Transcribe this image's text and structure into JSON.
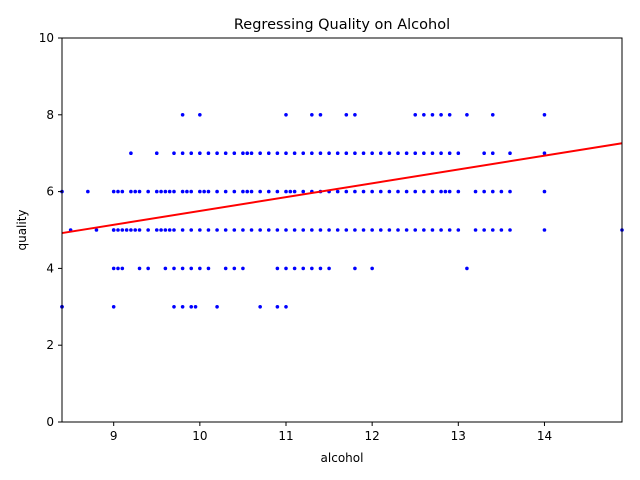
{
  "chart_data": {
    "type": "scatter",
    "title": "Regressing Quality on Alcohol",
    "xlabel": "alcohol",
    "ylabel": "quality",
    "xlim": [
      8.4,
      14.9
    ],
    "ylim": [
      0,
      10
    ],
    "xticks": [
      9,
      10,
      11,
      12,
      13,
      14
    ],
    "yticks": [
      0,
      2,
      4,
      6,
      8,
      10
    ],
    "grid": false,
    "point_color": "#0000ff",
    "line_color": "#ff0000",
    "points": {
      "x": [
        8.4,
        8.4,
        8.5,
        8.7,
        8.8,
        9.0,
        9.0,
        9.05,
        9.1,
        9.15,
        9.2,
        9.25,
        9.3,
        9.4,
        9.5,
        9.55,
        9.6,
        9.65,
        9.7,
        9.8,
        9.9,
        10.0,
        10.1,
        10.2,
        10.3,
        10.4,
        10.5,
        10.6,
        10.7,
        10.8,
        10.9,
        11.0,
        11.1,
        11.2,
        11.3,
        11.4,
        11.5,
        11.6,
        11.7,
        11.8,
        11.9,
        12.0,
        12.1,
        12.2,
        12.3,
        12.4,
        12.5,
        12.6,
        12.7,
        12.8,
        12.9,
        13.0,
        13.2,
        13.3,
        13.4,
        13.5,
        13.6,
        14.0,
        9.0,
        9.05,
        9.1,
        9.2,
        9.25,
        9.3,
        9.4,
        9.5,
        9.55,
        9.6,
        9.65,
        9.7,
        9.8,
        9.85,
        9.9,
        10.0,
        10.05,
        10.1,
        10.2,
        10.3,
        10.4,
        10.5,
        10.55,
        10.6,
        10.7,
        10.8,
        10.9,
        11.0,
        11.05,
        11.1,
        11.2,
        11.3,
        11.4,
        11.5,
        11.6,
        11.7,
        11.8,
        11.9,
        12.0,
        12.1,
        12.2,
        12.3,
        12.4,
        12.5,
        12.6,
        12.7,
        12.8,
        12.85,
        12.9,
        13.0,
        13.2,
        13.3,
        13.4,
        13.5,
        13.6,
        14.0,
        9.2,
        9.5,
        9.7,
        9.8,
        9.9,
        10.0,
        10.1,
        10.2,
        10.3,
        10.4,
        10.5,
        10.55,
        10.6,
        10.7,
        10.8,
        10.9,
        11.0,
        11.1,
        11.2,
        11.3,
        11.4,
        11.5,
        11.6,
        11.7,
        11.8,
        11.9,
        12.0,
        12.1,
        12.2,
        12.3,
        12.4,
        12.5,
        12.6,
        12.7,
        12.8,
        12.9,
        13.0,
        13.3,
        13.4,
        13.6,
        14.0,
        9.8,
        10.0,
        11.0,
        11.3,
        11.4,
        11.7,
        11.8,
        12.5,
        12.6,
        12.7,
        12.8,
        12.9,
        13.1,
        13.4,
        14.0,
        9.0,
        9.05,
        9.1,
        9.3,
        9.4,
        9.6,
        9.7,
        9.8,
        9.9,
        10.0,
        10.1,
        10.3,
        10.4,
        10.5,
        10.9,
        11.0,
        11.1,
        11.2,
        11.3,
        11.4,
        11.5,
        11.8,
        12.0,
        13.1,
        8.4,
        9.0,
        9.7,
        9.8,
        9.9,
        9.95,
        10.2,
        10.7,
        10.9,
        11.0,
        14.9
      ],
      "y": [
        3,
        6,
        5,
        6,
        5,
        5,
        5,
        5,
        5,
        5,
        5,
        5,
        5,
        5,
        5,
        5,
        5,
        5,
        5,
        5,
        5,
        5,
        5,
        5,
        5,
        5,
        5,
        5,
        5,
        5,
        5,
        5,
        5,
        5,
        5,
        5,
        5,
        5,
        5,
        5,
        5,
        5,
        5,
        5,
        5,
        5,
        5,
        5,
        5,
        5,
        5,
        5,
        5,
        5,
        5,
        5,
        5,
        5,
        6,
        6,
        6,
        6,
        6,
        6,
        6,
        6,
        6,
        6,
        6,
        6,
        6,
        6,
        6,
        6,
        6,
        6,
        6,
        6,
        6,
        6,
        6,
        6,
        6,
        6,
        6,
        6,
        6,
        6,
        6,
        6,
        6,
        6,
        6,
        6,
        6,
        6,
        6,
        6,
        6,
        6,
        6,
        6,
        6,
        6,
        6,
        6,
        6,
        6,
        6,
        6,
        6,
        6,
        6,
        6,
        7,
        7,
        7,
        7,
        7,
        7,
        7,
        7,
        7,
        7,
        7,
        7,
        7,
        7,
        7,
        7,
        7,
        7,
        7,
        7,
        7,
        7,
        7,
        7,
        7,
        7,
        7,
        7,
        7,
        7,
        7,
        7,
        7,
        7,
        7,
        7,
        7,
        7,
        7,
        7,
        7,
        8,
        8,
        8,
        8,
        8,
        8,
        8,
        8,
        8,
        8,
        8,
        8,
        8,
        8,
        8,
        4,
        4,
        4,
        4,
        4,
        4,
        4,
        4,
        4,
        4,
        4,
        4,
        4,
        4,
        4,
        4,
        4,
        4,
        4,
        4,
        4,
        4,
        4,
        4,
        3,
        3,
        3,
        3,
        3,
        3,
        3,
        3,
        3,
        3,
        5
      ]
    },
    "regression_line": {
      "x": [
        8.4,
        14.9
      ],
      "y": [
        4.92,
        7.26
      ]
    }
  }
}
